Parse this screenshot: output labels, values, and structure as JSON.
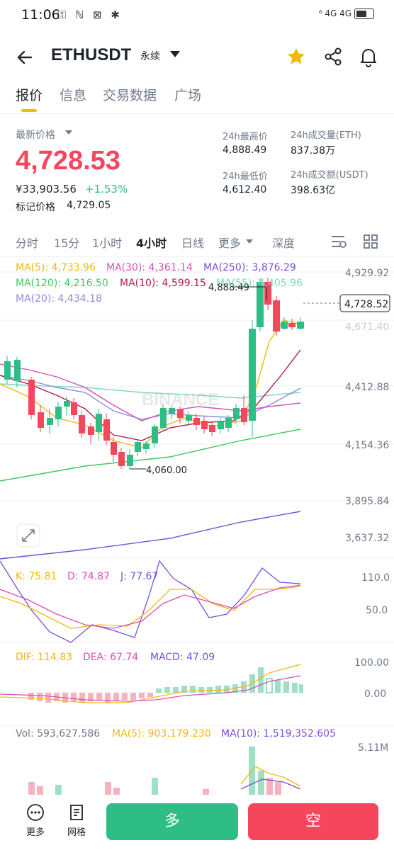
{
  "status": {
    "time": "11:06",
    "left_icons": "⚿ ℕ ⊠ ✱",
    "right_text": "⁶ 4G 4G"
  },
  "header": {
    "symbol": "ETHUSDT",
    "contract_type": "永续"
  },
  "tabs": [
    {
      "label": "报价"
    },
    {
      "label": "信息"
    },
    {
      "label": "交易数据"
    },
    {
      "label": "广场"
    }
  ],
  "price": {
    "last_price_label": "最新价格",
    "last_price": "4,728.53",
    "cny_value": "¥33,903.56",
    "change_pct": "+1.53%",
    "mark_price_label": "标记价格",
    "mark_price": "4,729.05"
  },
  "stats": {
    "high_label": "24h最高价",
    "high": "4,888.49",
    "low_label": "24h最低价",
    "low": "4,612.40",
    "vol_eth_label": "24h成交量(ETH)",
    "vol_eth": "837.38万",
    "vol_usdt_label": "24h成交额(USDT)",
    "vol_usdt": "398.63亿"
  },
  "intervals": {
    "items": [
      "分时",
      "15分",
      "1小时",
      "4小时",
      "日线",
      "更多",
      "深度"
    ],
    "active": "4小时"
  },
  "indicators": {
    "ma5": "MA(5): 4,733.96",
    "ma30": "MA(30): 4,361.14",
    "ma250": "MA(250): 3,876.29",
    "ma120": "MA(120): 4,216.50",
    "ma10": "MA(10): 4,599.15",
    "ma55": "MA(55): 4,405.96",
    "ma20": "MA(20): 4,434.18",
    "kdj_k": "K: 75.81",
    "kdj_d": "D: 74.87",
    "kdj_j": "J: 77.67",
    "dif": "DIF: 114.83",
    "dea": "DEA: 67.74",
    "macd": "MACD: 47.09",
    "vol": "Vol: 593,627.586",
    "vol_ma5": "MA(5): 903,179.230",
    "vol_ma10": "MA(10): 1,519,352.605"
  },
  "price_axis": [
    "4,929.92",
    "4,671.40",
    "4,412.88",
    "4,154.36",
    "3,895.84",
    "3,637.32"
  ],
  "kdj_axis": [
    "110.0",
    "50.0"
  ],
  "macd_axis": [
    "100.00",
    "0.00"
  ],
  "vol_axis": [
    "5.11M"
  ],
  "annotations": {
    "high_marker": "4,888.49",
    "low_marker": "4,060.00",
    "current_tag": "4,728.52",
    "watermark": "BINANCE"
  },
  "colors": {
    "up": "#2ebd85",
    "down": "#f6465d",
    "accent": "#f0b90b",
    "ma5": "#f0b90b",
    "ma10": "#b5194d",
    "ma20": "#8e8ce0",
    "ma30": "#d94fb6",
    "ma55": "#7ed6c1",
    "ma120": "#3cc85c",
    "ma250": "#7a4fd6"
  },
  "bottom": {
    "more_label": "更多",
    "grid_label": "网格",
    "long_label": "多",
    "short_label": "空"
  }
}
